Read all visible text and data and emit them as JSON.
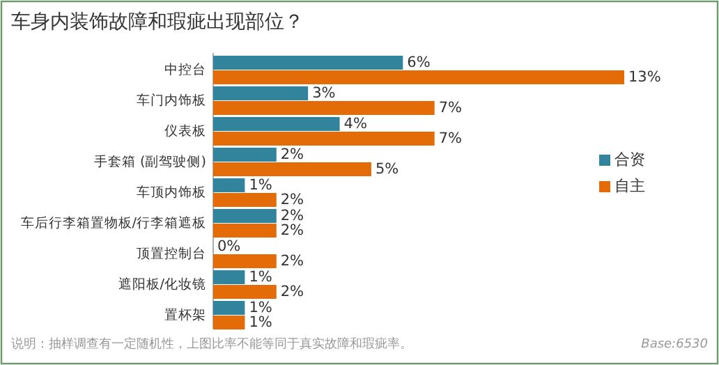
{
  "chart_data": {
    "type": "bar",
    "orientation": "horizontal",
    "title": "车身内装饰故障和瑕疵出现部位？",
    "categories": [
      "中控台",
      "车门内饰板",
      "仪表板",
      "手套箱 (副驾驶侧)",
      "车顶内饰板",
      "车后行李箱置物板/行李箱遮板",
      "顶置控制台",
      "遮阳板/化妆镜",
      "置杯架"
    ],
    "series": [
      {
        "name": "合资",
        "color": "#31849b",
        "values": [
          6,
          3,
          4,
          2,
          1,
          2,
          0,
          1,
          1
        ],
        "value_labels": [
          "6%",
          "3%",
          "4%",
          "2%",
          "1%",
          "2%",
          "0%",
          "1%",
          "1%"
        ]
      },
      {
        "name": "自主",
        "color": "#e36c09",
        "values": [
          13,
          7,
          7,
          5,
          2,
          2,
          2,
          2,
          1
        ],
        "value_labels": [
          "13%",
          "7%",
          "7%",
          "5%",
          "2%",
          "2%",
          "2%",
          "2%",
          "1%"
        ]
      }
    ],
    "legend": "right",
    "annotations": [
      "说明：抽样调查有一定随机性，上图比率不能等同于真实故障和瑕疵率。",
      "Base:6530"
    ]
  }
}
